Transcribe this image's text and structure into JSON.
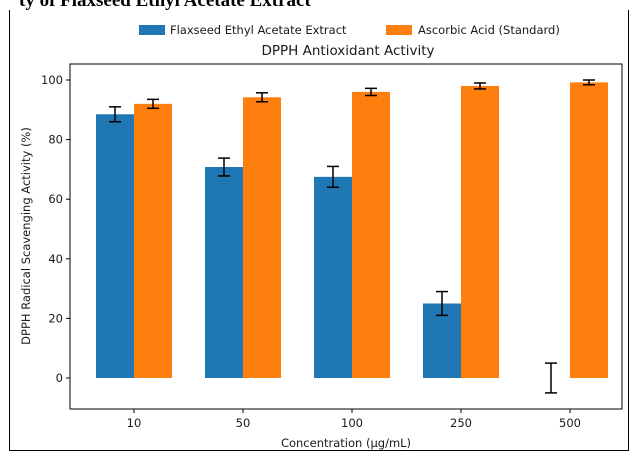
{
  "header": {
    "text": "ty of Flaxseed Ethyl Acetate Extract"
  },
  "chart_data": {
    "type": "bar",
    "title": "DPPH Antioxidant Activity",
    "xlabel": "Concentration (µg/mL)",
    "ylabel": "DPPH Radical Scavenging Activity (%)",
    "categories": [
      "10",
      "50",
      "100",
      "250",
      "500"
    ],
    "ylim": [
      -10,
      105
    ],
    "yticks": [
      0,
      20,
      40,
      60,
      80,
      100
    ],
    "legend": "top-center-outside",
    "grid": false,
    "series": [
      {
        "name": "Flaxseed Ethyl Acetate Extract",
        "color": "#1f77b4",
        "values": [
          88.5,
          70.8,
          67.5,
          25.0,
          0.0
        ],
        "errors": [
          2.5,
          3.0,
          3.5,
          4.0,
          5.0
        ]
      },
      {
        "name": "Ascorbic Acid (Standard)",
        "color": "#ff7f0e",
        "values": [
          92.0,
          94.2,
          96.0,
          98.0,
          99.2
        ],
        "errors": [
          1.5,
          1.5,
          1.2,
          1.0,
          0.8
        ]
      }
    ]
  }
}
